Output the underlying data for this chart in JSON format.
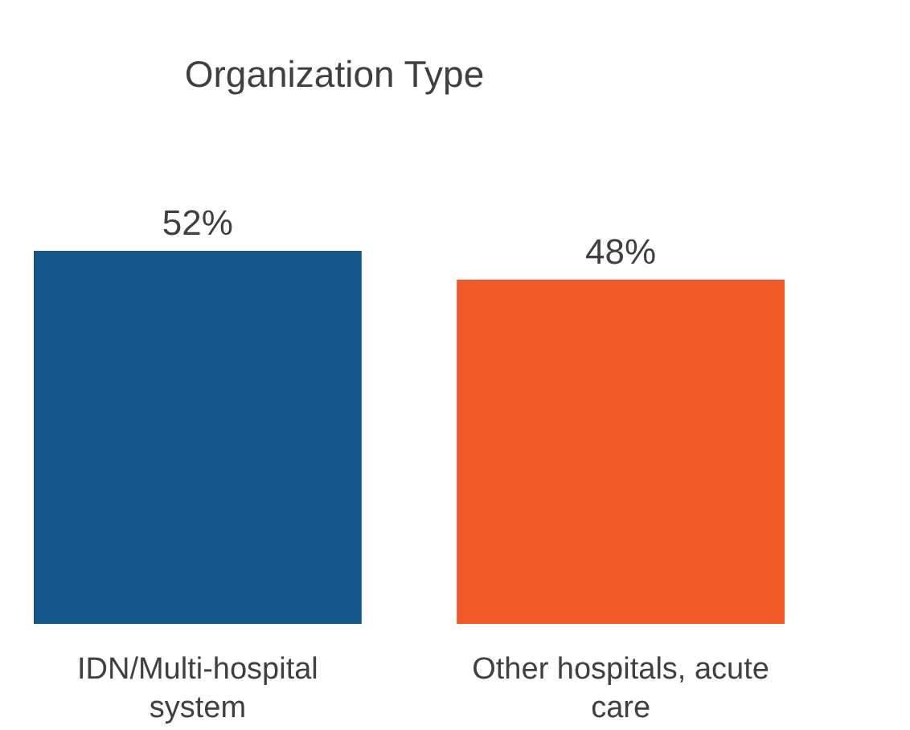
{
  "chart_data": {
    "type": "bar",
    "title": "Organization Type",
    "categories": [
      "IDN/Multi-hospital system",
      "Other hospitals, acute care"
    ],
    "values": [
      52,
      48
    ],
    "colors": [
      "#14568a",
      "#f05a28"
    ],
    "value_labels": [
      "52%",
      "48%"
    ]
  }
}
